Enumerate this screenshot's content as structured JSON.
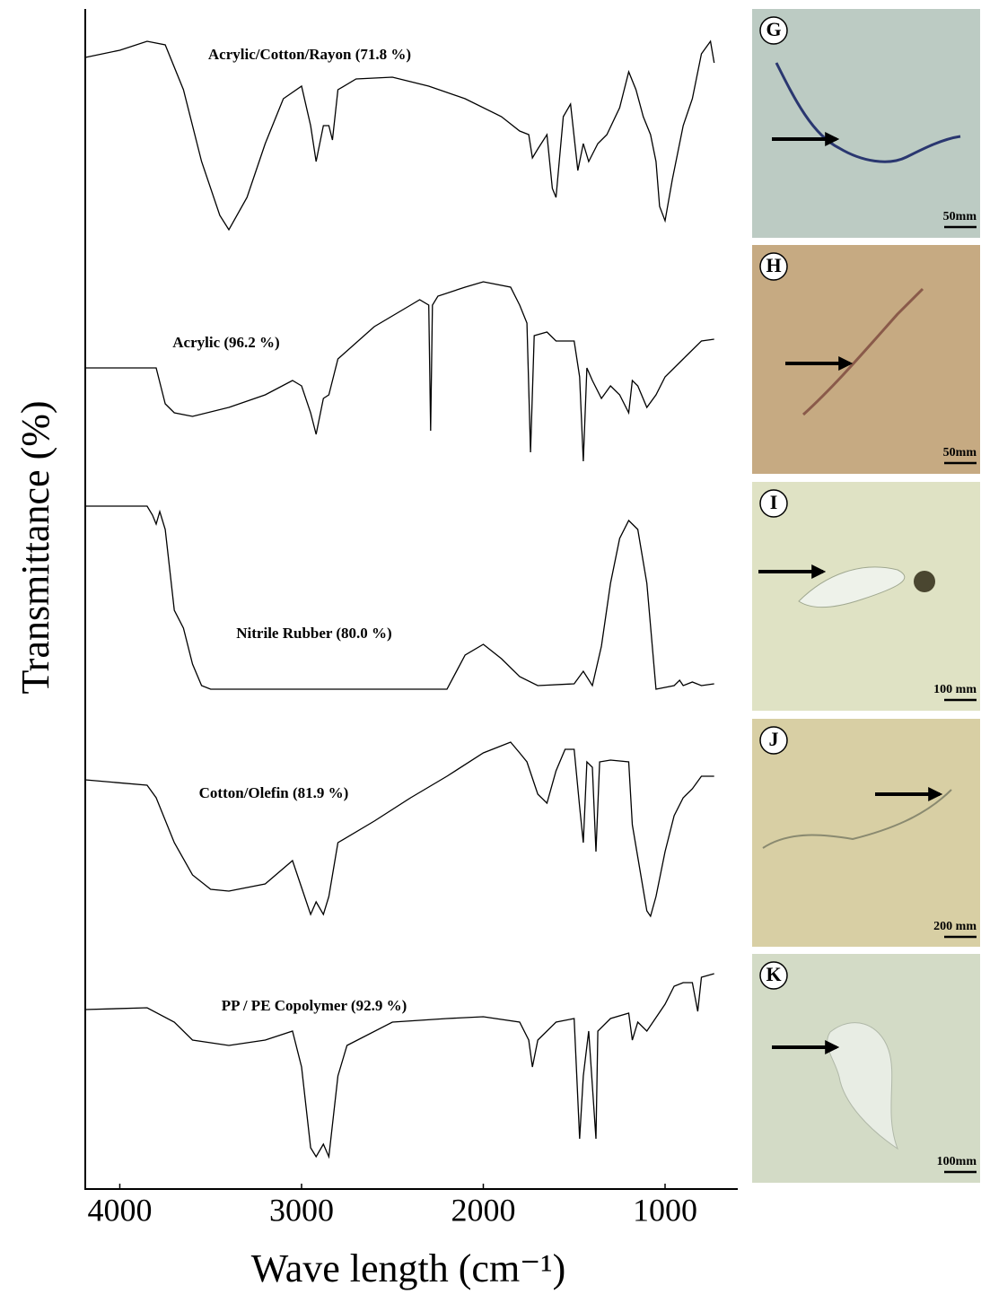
{
  "chart_data": {
    "type": "line",
    "xlabel": "Wave length (cm⁻¹)",
    "ylabel": "Transmittance (%)",
    "xlim": [
      4190,
      600
    ],
    "xticks": [
      4000,
      3000,
      2000,
      1000
    ],
    "ylim": [
      0,
      110
    ],
    "series": [
      {
        "name": "Acrylic/Cotton/Rayon (71.8 %)",
        "color": "#000000",
        "x": [
          4190,
          4000,
          3850,
          3750,
          3650,
          3550,
          3450,
          3400,
          3300,
          3200,
          3100,
          3000,
          2950,
          2920,
          2880,
          2850,
          2830,
          2800,
          2700,
          2500,
          2300,
          2100,
          1900,
          1800,
          1750,
          1730,
          1700,
          1650,
          1620,
          1600,
          1560,
          1520,
          1480,
          1450,
          1420,
          1370,
          1320,
          1250,
          1200,
          1160,
          1120,
          1080,
          1050,
          1030,
          1000,
          960,
          900,
          850,
          800,
          750,
          730
        ],
        "values": [
          96,
          100,
          105,
          103,
          78,
          38,
          8,
          0,
          18,
          48,
          73,
          80,
          58,
          38,
          58,
          58,
          50,
          78,
          84,
          85,
          80,
          73,
          63,
          55,
          53,
          40,
          45,
          53,
          23,
          18,
          63,
          70,
          33,
          48,
          38,
          48,
          53,
          68,
          88,
          78,
          63,
          53,
          38,
          13,
          5,
          28,
          58,
          73,
          98,
          105,
          93
        ]
      },
      {
        "name": "Acrylic (96.2 %)",
        "color": "#000000",
        "x": [
          4190,
          4000,
          3850,
          3800,
          3750,
          3700,
          3600,
          3400,
          3200,
          3050,
          3000,
          2950,
          2920,
          2880,
          2850,
          2800,
          2600,
          2400,
          2350,
          2300,
          2290,
          2280,
          2250,
          2100,
          2000,
          1850,
          1800,
          1760,
          1740,
          1720,
          1650,
          1600,
          1500,
          1470,
          1450,
          1430,
          1400,
          1350,
          1300,
          1250,
          1200,
          1180,
          1150,
          1100,
          1050,
          1000,
          900,
          800,
          730
        ],
        "values": [
          55,
          55,
          55,
          55,
          35,
          30,
          28,
          33,
          40,
          48,
          45,
          30,
          18,
          38,
          40,
          60,
          78,
          90,
          93,
          90,
          20,
          90,
          95,
          100,
          103,
          100,
          90,
          80,
          8,
          73,
          75,
          70,
          70,
          50,
          3,
          55,
          48,
          38,
          45,
          40,
          30,
          48,
          45,
          33,
          40,
          50,
          60,
          70,
          71
        ]
      },
      {
        "name": "Nitrile Rubber (80.0 %)",
        "color": "#000000",
        "x": [
          4190,
          3850,
          3820,
          3800,
          3780,
          3750,
          3700,
          3650,
          3600,
          3550,
          3500,
          2200,
          2100,
          2000,
          1900,
          1800,
          1700,
          1500,
          1450,
          1400,
          1350,
          1300,
          1250,
          1200,
          1150,
          1100,
          1050,
          950,
          920,
          900,
          850,
          800,
          730
        ],
        "values": [
          102,
          102,
          97,
          92,
          99,
          89,
          44,
          34,
          14,
          2,
          0,
          0,
          19,
          25,
          17,
          7,
          2,
          3,
          10,
          2,
          24,
          59,
          84,
          94,
          89,
          59,
          0,
          2,
          5,
          2,
          4,
          2,
          3
        ]
      },
      {
        "name": "Cotton/Olefin (81.9 %)",
        "color": "#000000",
        "x": [
          4190,
          3850,
          3800,
          3700,
          3600,
          3500,
          3400,
          3200,
          3050,
          3000,
          2950,
          2920,
          2880,
          2850,
          2800,
          2600,
          2400,
          2200,
          2000,
          1850,
          1800,
          1760,
          1700,
          1650,
          1600,
          1550,
          1500,
          1470,
          1450,
          1430,
          1400,
          1380,
          1360,
          1300,
          1200,
          1180,
          1100,
          1080,
          1050,
          1000,
          950,
          900,
          850,
          800,
          730
        ],
        "values": [
          78,
          75,
          68,
          43,
          25,
          17,
          16,
          20,
          33,
          18,
          3,
          10,
          3,
          13,
          43,
          55,
          68,
          80,
          93,
          99,
          93,
          88,
          70,
          65,
          83,
          95,
          95,
          63,
          43,
          88,
          85,
          38,
          88,
          89,
          88,
          53,
          5,
          2,
          13,
          38,
          58,
          68,
          73,
          80,
          80
        ]
      },
      {
        "name": "PP / PE Copolymer (92.9 %)",
        "color": "#000000",
        "x": [
          4190,
          3850,
          3700,
          3600,
          3400,
          3200,
          3050,
          3000,
          2950,
          2920,
          2880,
          2850,
          2800,
          2750,
          2500,
          2200,
          2000,
          1800,
          1750,
          1730,
          1700,
          1600,
          1500,
          1470,
          1450,
          1420,
          1380,
          1370,
          1300,
          1200,
          1180,
          1150,
          1100,
          1000,
          950,
          900,
          850,
          820,
          800,
          730
        ],
        "values": [
          85,
          86,
          78,
          68,
          65,
          68,
          73,
          53,
          8,
          3,
          10,
          3,
          48,
          65,
          78,
          80,
          81,
          78,
          68,
          53,
          68,
          78,
          80,
          13,
          48,
          73,
          13,
          73,
          80,
          83,
          68,
          78,
          73,
          88,
          98,
          100,
          100,
          84,
          103,
          105
        ]
      }
    ]
  },
  "panels": [
    {
      "label": "G",
      "scale": "50mm"
    },
    {
      "label": "H",
      "scale": "50mm"
    },
    {
      "label": "I",
      "scale": "100 mm"
    },
    {
      "label": "J",
      "scale": "200 mm"
    },
    {
      "label": "K",
      "scale": "100mm"
    }
  ]
}
